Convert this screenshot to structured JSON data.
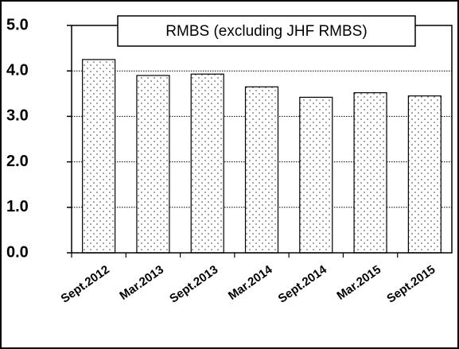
{
  "chart_data": {
    "type": "bar",
    "title": "RMBS (excluding JHF RMBS)",
    "categories": [
      "Sept.2012",
      "Mar.2013",
      "Sept.2013",
      "Mar.2014",
      "Sept.2014",
      "Mar.2015",
      "Sept.2015"
    ],
    "values": [
      4.25,
      3.9,
      3.93,
      3.65,
      3.42,
      3.52,
      3.45
    ],
    "color": "#000000",
    "ylim": [
      0,
      5
    ],
    "yticks": [
      {
        "value": 0,
        "label": "0.0"
      },
      {
        "value": 1,
        "label": "1.0"
      },
      {
        "value": 2,
        "label": "2.0"
      },
      {
        "value": 3,
        "label": "3.0"
      },
      {
        "value": 4,
        "label": "4.0"
      },
      {
        "value": 5,
        "label": "5.0"
      }
    ],
    "grid": true
  }
}
